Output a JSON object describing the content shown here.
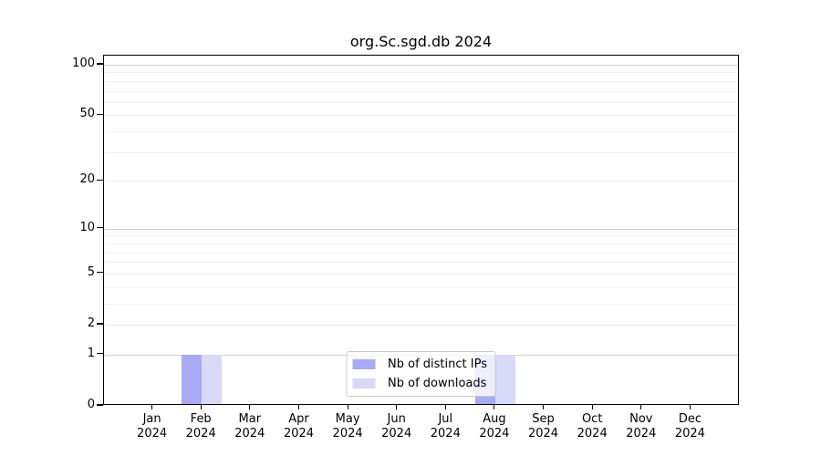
{
  "chart_data": {
    "type": "bar",
    "title": "org.Sc.sgd.db 2024",
    "categories": [
      "Jan",
      "Feb",
      "Mar",
      "Apr",
      "May",
      "Jun",
      "Jul",
      "Aug",
      "Sep",
      "Oct",
      "Nov",
      "Dec"
    ],
    "year_label": "2024",
    "series": [
      {
        "name": "Nb of distinct IPs",
        "color": "#a9a9f5",
        "values": [
          0,
          1,
          0,
          0,
          0,
          0,
          0,
          1,
          0,
          0,
          0,
          0
        ]
      },
      {
        "name": "Nb of downloads",
        "color": "#d9d9f8",
        "values": [
          0,
          1,
          0,
          0,
          0,
          0,
          0,
          1,
          0,
          0,
          0,
          0
        ]
      }
    ],
    "yscale": "log1p",
    "y_ticks": [
      0,
      1,
      2,
      5,
      10,
      20,
      50,
      100
    ],
    "y_minor_ticks": [
      3,
      4,
      6,
      7,
      8,
      9,
      30,
      40,
      60,
      70,
      80,
      90
    ],
    "ylim": [
      0,
      114
    ],
    "grid": true,
    "legend_position": "lower center",
    "colors": {
      "major_gridline": "#d2d2d2",
      "sub_gridline": "#ebebeb",
      "minor_gridline": "#f2f2f2",
      "axis": "#000000"
    }
  }
}
